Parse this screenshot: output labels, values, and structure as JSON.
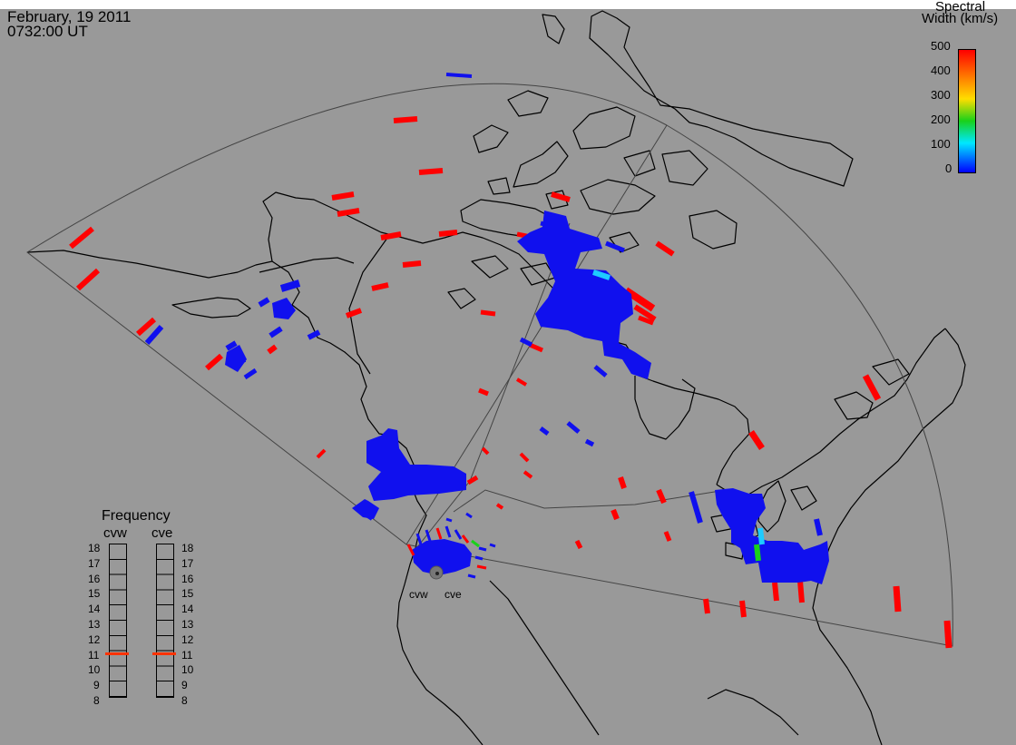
{
  "header": {
    "date": "February, 19 2011",
    "time": "0732:00 UT"
  },
  "colorbar": {
    "title_line1": "Spectral",
    "title_line2": "Width (km/s)",
    "ticks": [
      "500",
      "400",
      "300",
      "200",
      "100",
      "0"
    ],
    "colors": [
      "#ff0000",
      "#ff8800",
      "#ffdd00",
      "#00cc00",
      "#00e8ff",
      "#0000ff"
    ]
  },
  "radars": [
    {
      "code": "cvw",
      "label": "cvw",
      "frequency": 10.8
    },
    {
      "code": "cve",
      "label": "cve",
      "frequency": 10.8
    }
  ],
  "frequency_panel": {
    "title": "Frequency",
    "ticks": [
      "18",
      "17",
      "16",
      "15",
      "14",
      "13",
      "12",
      "11",
      "10",
      "9",
      "8"
    ],
    "min": 8,
    "max": 18
  },
  "colors": {
    "background": "#999999",
    "land_line": "#000000",
    "fov_line": "#444444",
    "high_width": "#ff0000",
    "low_width": "#1010ee",
    "mid_width": "#1ecbff",
    "green_width": "#19d11a",
    "freq_marker": "#ff3300"
  }
}
